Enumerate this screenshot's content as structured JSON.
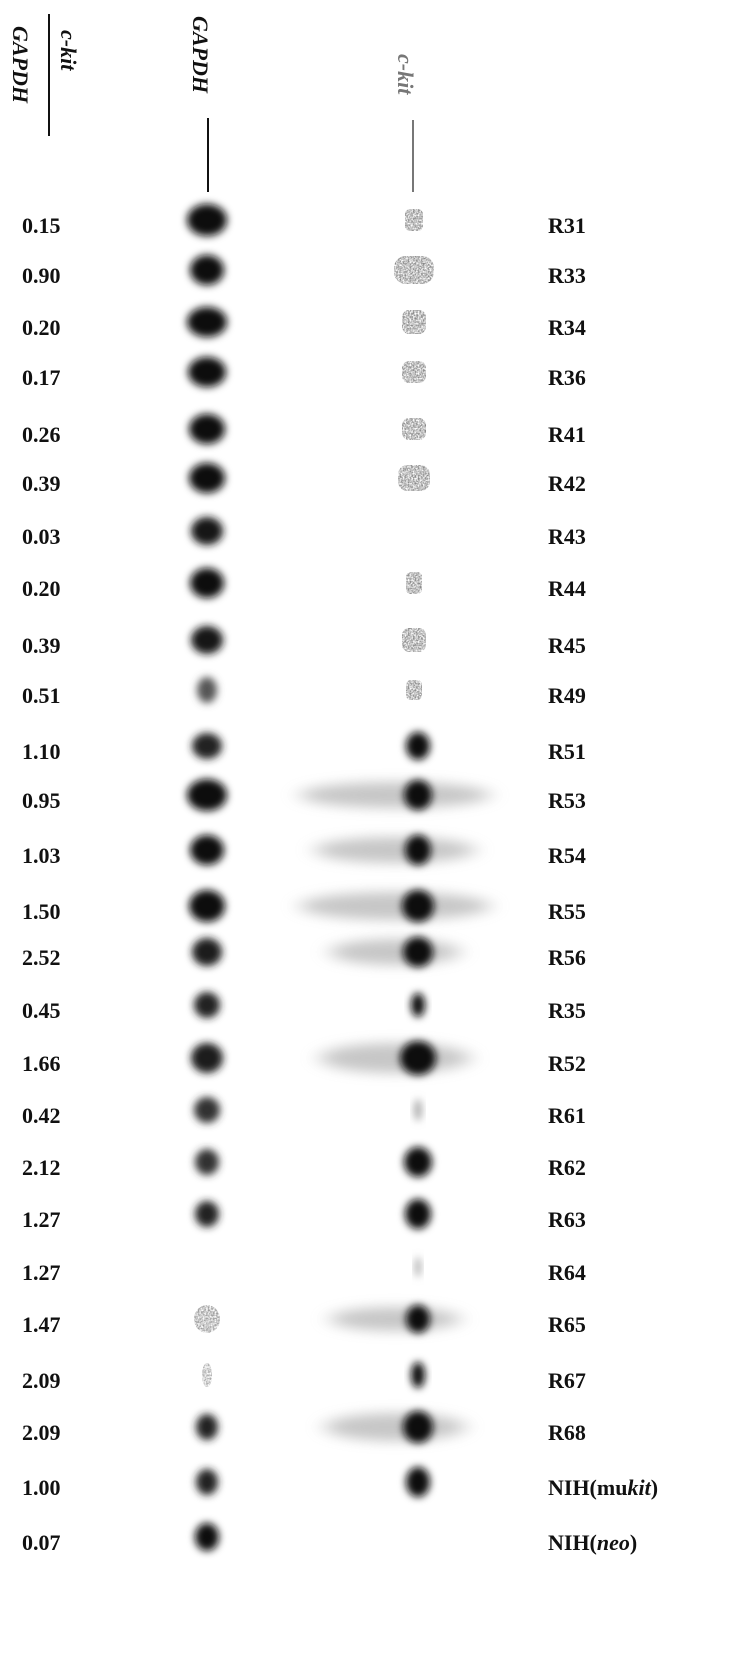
{
  "header": {
    "ratio_numerator": "c-kit",
    "ratio_denominator": "GAPDH",
    "lane_gapdh": "GAPDH",
    "lane_ckit": "c-kit"
  },
  "rows": [
    {
      "ratio": "0.15",
      "label": "R31"
    },
    {
      "ratio": "0.90",
      "label": "R33"
    },
    {
      "ratio": "0.20",
      "label": "R34"
    },
    {
      "ratio": "0.17",
      "label": "R36"
    },
    {
      "ratio": "0.26",
      "label": "R41"
    },
    {
      "ratio": "0.39",
      "label": "R42"
    },
    {
      "ratio": "0.03",
      "label": "R43"
    },
    {
      "ratio": "0.20",
      "label": "R44"
    },
    {
      "ratio": "0.39",
      "label": "R45"
    },
    {
      "ratio": "0.51",
      "label": "R49"
    },
    {
      "ratio": "1.10",
      "label": "R51"
    },
    {
      "ratio": "0.95",
      "label": "R53"
    },
    {
      "ratio": "1.03",
      "label": "R54"
    },
    {
      "ratio": "1.50",
      "label": "R55"
    },
    {
      "ratio": "2.52",
      "label": "R56"
    },
    {
      "ratio": "0.45",
      "label": "R35"
    },
    {
      "ratio": "1.66",
      "label": "R52"
    },
    {
      "ratio": "0.42",
      "label": "R61"
    },
    {
      "ratio": "2.12",
      "label": "R62"
    },
    {
      "ratio": "1.27",
      "label": "R63"
    },
    {
      "ratio": "1.27",
      "label": "R64"
    },
    {
      "ratio": "1.47",
      "label": "R65"
    },
    {
      "ratio": "2.09",
      "label": "R67"
    },
    {
      "ratio": "2.09",
      "label": "R68"
    },
    {
      "ratio": "1.00",
      "label_parts": [
        "NIH(mu",
        "kit",
        ")"
      ]
    },
    {
      "ratio": "0.07",
      "label_parts": [
        "NIH(",
        "neo",
        ")"
      ]
    }
  ]
}
